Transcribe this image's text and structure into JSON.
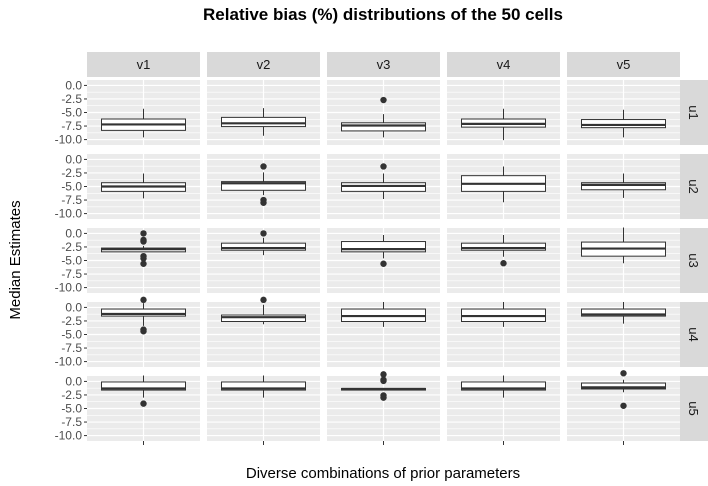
{
  "chart_data": {
    "type": "boxplot",
    "title": "Relative bias (%) distributions of the 50 cells",
    "xlabel": "Diverse combinations of prior parameters",
    "ylabel": "Median Estimates",
    "columns": [
      "v1",
      "v2",
      "v3",
      "v4",
      "v5"
    ],
    "rows": [
      "u1",
      "u2",
      "u3",
      "u4",
      "u5"
    ],
    "ylim": [
      -11,
      1
    ],
    "yticks": [
      0.0,
      -2.5,
      -5.0,
      -7.5,
      -10.0
    ],
    "ytick_labels": [
      "0.0",
      "-2.5",
      "-5.0",
      "-7.5",
      "-10.0"
    ],
    "grid": true,
    "panels": [
      {
        "row": "u1",
        "col": "v1",
        "whisker_low": -9.6,
        "q1": -8.3,
        "median": -7.2,
        "q3": -6.2,
        "whisker_high": -4.3,
        "outliers": []
      },
      {
        "row": "u1",
        "col": "v2",
        "whisker_low": -9.3,
        "q1": -7.6,
        "median": -7.0,
        "q3": -5.9,
        "whisker_high": -4.2,
        "outliers": []
      },
      {
        "row": "u1",
        "col": "v3",
        "whisker_low": -9.6,
        "q1": -8.4,
        "median": -7.4,
        "q3": -6.9,
        "whisker_high": -5.3,
        "outliers": [
          -2.7
        ]
      },
      {
        "row": "u1",
        "col": "v4",
        "whisker_low": -10.1,
        "q1": -7.7,
        "median": -7.1,
        "q3": -6.2,
        "whisker_high": -4.3,
        "outliers": []
      },
      {
        "row": "u1",
        "col": "v5",
        "whisker_low": -9.6,
        "q1": -7.8,
        "median": -7.3,
        "q3": -6.3,
        "whisker_high": -4.5,
        "outliers": []
      },
      {
        "row": "u2",
        "col": "v1",
        "whisker_low": -7.2,
        "q1": -5.9,
        "median": -5.0,
        "q3": -4.3,
        "whisker_high": -2.6,
        "outliers": []
      },
      {
        "row": "u2",
        "col": "v2",
        "whisker_low": -6.6,
        "q1": -5.7,
        "median": -4.4,
        "q3": -4.1,
        "whisker_high": -2.4,
        "outliers": [
          -1.3,
          -7.5,
          -8.0
        ]
      },
      {
        "row": "u2",
        "col": "v3",
        "whisker_low": -7.3,
        "q1": -5.9,
        "median": -4.9,
        "q3": -4.3,
        "whisker_high": -2.6,
        "outliers": [
          -1.3
        ]
      },
      {
        "row": "u2",
        "col": "v4",
        "whisker_low": -7.9,
        "q1": -5.9,
        "median": -4.5,
        "q3": -3.0,
        "whisker_high": -1.3,
        "outliers": []
      },
      {
        "row": "u2",
        "col": "v5",
        "whisker_low": -7.1,
        "q1": -5.6,
        "median": -4.7,
        "q3": -4.3,
        "whisker_high": -2.6,
        "outliers": []
      },
      {
        "row": "u3",
        "col": "v1",
        "whisker_low": -3.4,
        "q1": -3.4,
        "median": -2.9,
        "q3": -2.7,
        "whisker_high": -2.3,
        "outliers": [
          0.0,
          -1.2,
          -1.5,
          -4.2,
          -4.6,
          -5.6
        ]
      },
      {
        "row": "u3",
        "col": "v2",
        "whisker_low": -4.0,
        "q1": -3.1,
        "median": -2.7,
        "q3": -1.8,
        "whisker_high": -0.8,
        "outliers": [
          0.0
        ]
      },
      {
        "row": "u3",
        "col": "v3",
        "whisker_low": -4.6,
        "q1": -3.4,
        "median": -2.9,
        "q3": -1.5,
        "whisker_high": -0.3,
        "outliers": [
          -5.6
        ]
      },
      {
        "row": "u3",
        "col": "v4",
        "whisker_low": -4.3,
        "q1": -3.1,
        "median": -2.7,
        "q3": -1.8,
        "whisker_high": -0.3,
        "outliers": [
          -5.5
        ]
      },
      {
        "row": "u3",
        "col": "v5",
        "whisker_low": -5.5,
        "q1": -4.2,
        "median": -2.8,
        "q3": -1.6,
        "whisker_high": 1.1,
        "outliers": []
      },
      {
        "row": "u4",
        "col": "v1",
        "whisker_low": -3.4,
        "q1": -1.6,
        "median": -1.2,
        "q3": -0.3,
        "whisker_high": 0.8,
        "outliers": [
          1.4,
          -4.1,
          -4.4
        ]
      },
      {
        "row": "u4",
        "col": "v2",
        "whisker_low": -3.1,
        "q1": -2.6,
        "median": -1.8,
        "q3": -1.4,
        "whisker_high": 0.5,
        "outliers": [
          1.4
        ]
      },
      {
        "row": "u4",
        "col": "v3",
        "whisker_low": -3.6,
        "q1": -2.6,
        "median": -1.6,
        "q3": -0.3,
        "whisker_high": 1.0,
        "outliers": []
      },
      {
        "row": "u4",
        "col": "v4",
        "whisker_low": -3.6,
        "q1": -2.6,
        "median": -1.6,
        "q3": -0.3,
        "whisker_high": 1.0,
        "outliers": []
      },
      {
        "row": "u4",
        "col": "v5",
        "whisker_low": -3.0,
        "q1": -1.6,
        "median": -1.3,
        "q3": -0.3,
        "whisker_high": 1.0,
        "outliers": []
      },
      {
        "row": "u5",
        "col": "v1",
        "whisker_low": -3.0,
        "q1": -1.6,
        "median": -1.3,
        "q3": -0.1,
        "whisker_high": 1.1,
        "outliers": [
          -4.1
        ]
      },
      {
        "row": "u5",
        "col": "v2",
        "whisker_low": -3.0,
        "q1": -1.6,
        "median": -1.3,
        "q3": -0.1,
        "whisker_high": 1.1,
        "outliers": []
      },
      {
        "row": "u5",
        "col": "v3",
        "whisker_low": -1.6,
        "q1": -1.6,
        "median": -1.4,
        "q3": -1.3,
        "whisker_high": -1.3,
        "outliers": [
          1.3,
          0.3,
          0.1,
          -2.6,
          -3.0
        ]
      },
      {
        "row": "u5",
        "col": "v4",
        "whisker_low": -3.0,
        "q1": -1.6,
        "median": -1.3,
        "q3": -0.1,
        "whisker_high": 1.1,
        "outliers": []
      },
      {
        "row": "u5",
        "col": "v5",
        "whisker_low": -2.0,
        "q1": -1.4,
        "median": -1.1,
        "q3": -0.3,
        "whisker_high": 0.3,
        "outliers": [
          1.5,
          -4.5
        ]
      }
    ]
  },
  "colors": {
    "panel_background": "#ebebeb",
    "strip_background": "#d9d9d9",
    "grid": "#ffffff",
    "box_line": "#333333",
    "point": "#333333"
  }
}
